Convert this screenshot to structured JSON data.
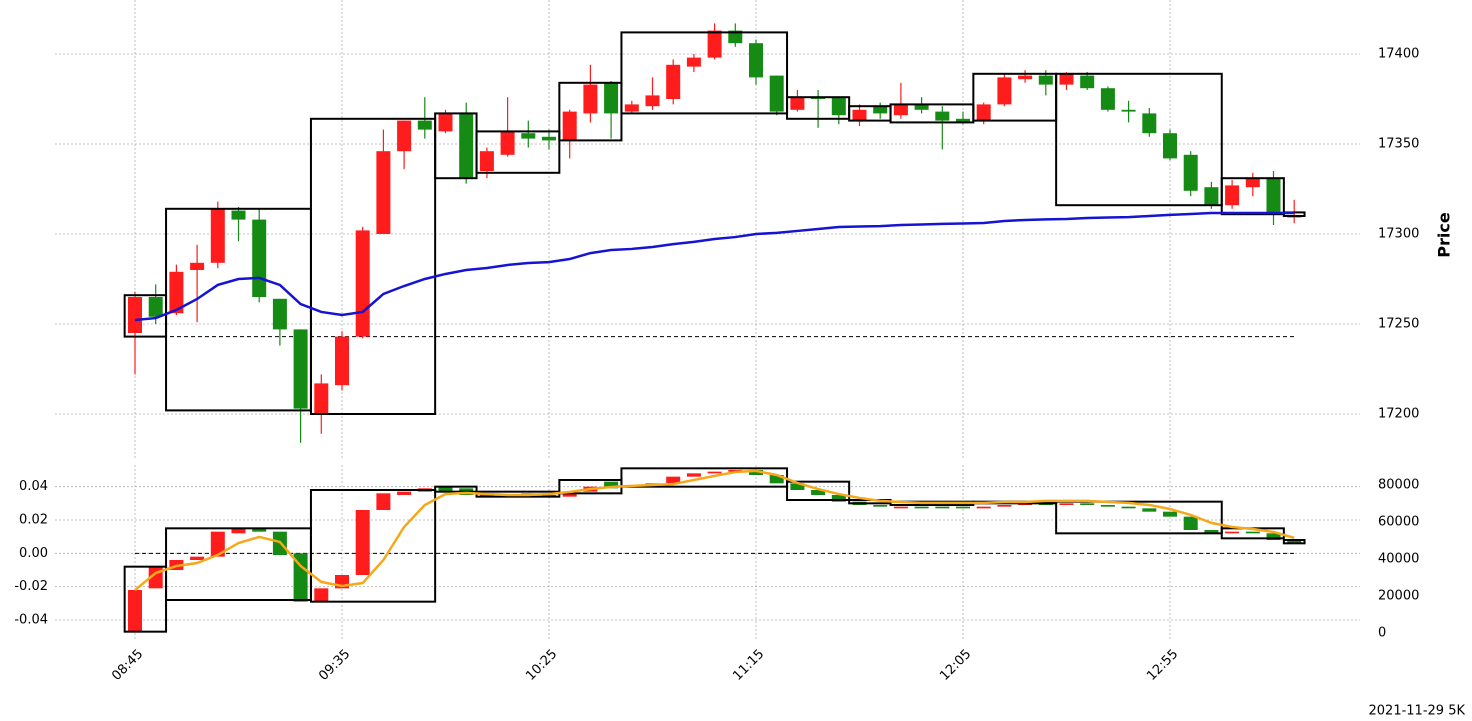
{
  "footer": "2021-11-29 5K",
  "chart_data": [
    {
      "type": "candlestick",
      "ylabel": "Price",
      "yaxis_side": "right",
      "grid": true,
      "up_color": "#fe1c1c",
      "down_color": "#158a15",
      "box_color": "#000000",
      "ylim": [
        17175,
        17430
      ],
      "yticks": [
        17200,
        17250,
        17300,
        17350,
        17400
      ],
      "open": [
        17245,
        17265,
        17256,
        17280,
        17284,
        17313,
        17308,
        17264,
        17247,
        17200,
        17216,
        17243,
        17300,
        17346,
        17363,
        17357,
        17367,
        17335,
        17344,
        17356,
        17354,
        17352,
        17367,
        17384,
        17368,
        17371,
        17375,
        17393,
        17398,
        17413,
        17406,
        17388,
        17369,
        17376,
        17376,
        17363,
        17371,
        17366,
        17372,
        17368,
        17364,
        17363,
        17372,
        17386,
        17388,
        17383,
        17388,
        17381,
        17369,
        17367,
        17356,
        17344,
        17326,
        17316,
        17326,
        17331,
        17310
      ],
      "high": [
        17268,
        17272,
        17283,
        17294,
        17318,
        17315,
        17314,
        17264,
        17247,
        17222,
        17246,
        17304,
        17358,
        17363,
        17376,
        17369,
        17373,
        17348,
        17376,
        17363,
        17358,
        17369,
        17394,
        17385,
        17374,
        17387,
        17397,
        17400,
        17417,
        17417,
        17408,
        17388,
        17380,
        17380,
        17376,
        17372,
        17373,
        17384,
        17376,
        17371,
        17368,
        17373,
        17389,
        17391,
        17391,
        17390,
        17390,
        17382,
        17374,
        17370,
        17358,
        17346,
        17329,
        17330,
        17334,
        17335,
        17319
      ],
      "low": [
        17222,
        17250,
        17255,
        17251,
        17281,
        17296,
        17262,
        17238,
        17184,
        17189,
        17213,
        17242,
        17300,
        17336,
        17353,
        17356,
        17328,
        17331,
        17343,
        17348,
        17347,
        17342,
        17362,
        17353,
        17367,
        17369,
        17372,
        17390,
        17397,
        17404,
        17383,
        17366,
        17368,
        17359,
        17361,
        17360,
        17364,
        17364,
        17367,
        17347,
        17361,
        17361,
        17371,
        17384,
        17377,
        17380,
        17380,
        17368,
        17362,
        17354,
        17341,
        17321,
        17314,
        17314,
        17321,
        17305,
        17306
      ],
      "close": [
        17265,
        17254,
        17279,
        17284,
        17314,
        17308,
        17265,
        17247,
        17203,
        17217,
        17243,
        17302,
        17346,
        17363,
        17358,
        17367,
        17331,
        17346,
        17357,
        17353,
        17352,
        17368,
        17383,
        17367,
        17372,
        17377,
        17394,
        17398,
        17413,
        17406,
        17387,
        17368,
        17376,
        17375,
        17366,
        17369,
        17367,
        17372,
        17369,
        17363,
        17362,
        17372,
        17387,
        17388,
        17383,
        17389,
        17381,
        17369,
        17368,
        17356,
        17342,
        17324,
        17316,
        17327,
        17331,
        17312,
        17310
      ],
      "hline": 17243,
      "boxes": [
        {
          "start": 0,
          "end": 1,
          "low": 17243,
          "high": 17266
        },
        {
          "start": 2,
          "end": 8,
          "low": 17202,
          "high": 17314
        },
        {
          "start": 9,
          "end": 14,
          "low": 17200,
          "high": 17364
        },
        {
          "start": 15,
          "end": 16,
          "low": 17331,
          "high": 17367
        },
        {
          "start": 17,
          "end": 20,
          "low": 17334,
          "high": 17357
        },
        {
          "start": 21,
          "end": 23,
          "low": 17352,
          "high": 17384
        },
        {
          "start": 24,
          "end": 31,
          "low": 17367,
          "high": 17412
        },
        {
          "start": 32,
          "end": 34,
          "low": 17364,
          "high": 17376
        },
        {
          "start": 35,
          "end": 36,
          "low": 17363,
          "high": 17371
        },
        {
          "start": 37,
          "end": 40,
          "low": 17362,
          "high": 17372
        },
        {
          "start": 41,
          "end": 44,
          "low": 17363,
          "high": 17389
        },
        {
          "start": 45,
          "end": 52,
          "low": 17316,
          "high": 17389
        },
        {
          "start": 53,
          "end": 55,
          "low": 17311,
          "high": 17331
        },
        {
          "start": 56,
          "end": 56,
          "low": 17310,
          "high": 17312
        }
      ],
      "lines": [
        {
          "color": "#1414d2",
          "values": [
            17252.2,
            17253.3,
            17257.8,
            17263.9,
            17271.7,
            17275.0,
            17275.6,
            17271.7,
            17261.1,
            17256.7,
            17255.0,
            17256.7,
            17266.7,
            17271.1,
            17275.0,
            17277.8,
            17280.0,
            17281.1,
            17282.8,
            17283.9,
            17284.4,
            17286.1,
            17289.4,
            17291.1,
            17291.7,
            17292.8,
            17294.4,
            17295.6,
            17297.2,
            17298.3,
            17300.0,
            17300.6,
            17301.7,
            17302.8,
            17303.9,
            17304.2,
            17304.4,
            17305.0,
            17305.3,
            17305.6,
            17305.8,
            17306.1,
            17307.2,
            17307.8,
            17308.1,
            17308.3,
            17308.9,
            17309.2,
            17309.4,
            17310.0,
            17310.6,
            17311.1,
            17311.7,
            17311.7,
            17311.7,
            17311.7,
            17311.7
          ]
        }
      ]
    },
    {
      "type": "candlestick",
      "yaxis_side": "left",
      "grid": true,
      "up_color": "#fe1c1c",
      "down_color": "#158a15",
      "box_color": "#000000",
      "categories": [
        "08:45",
        null,
        null,
        null,
        null,
        null,
        null,
        null,
        null,
        null,
        "09:35",
        null,
        null,
        null,
        null,
        null,
        null,
        null,
        null,
        null,
        "10:25",
        null,
        null,
        null,
        null,
        null,
        null,
        null,
        null,
        null,
        "11:15",
        null,
        null,
        null,
        null,
        null,
        null,
        null,
        null,
        null,
        "12:05",
        null,
        null,
        null,
        null,
        null,
        null,
        null,
        null,
        null,
        "12:55",
        null,
        null,
        null,
        null,
        null,
        null
      ],
      "ylim": [
        -0.052,
        0.053
      ],
      "yticks": [
        -0.04,
        -0.02,
        {
          "value": 0,
          "label": "0.00"
        },
        0.02,
        0.04
      ],
      "y2lim": [
        -3800,
        90800
      ],
      "y2ticks": [
        0,
        20000,
        40000,
        60000,
        80000
      ],
      "open": [
        -0.047,
        -0.021,
        -0.01,
        -0.004,
        -0.002,
        0.012,
        0.015,
        0.013,
        0.0,
        -0.029,
        -0.021,
        -0.013,
        0.026,
        0.035,
        0.037,
        0.04,
        0.039,
        0.036,
        0.034,
        0.036,
        0.035,
        0.034,
        0.037,
        0.043,
        0.04,
        0.041,
        0.042,
        0.046,
        0.048,
        0.049,
        0.05,
        0.047,
        0.042,
        0.038,
        0.035,
        0.031,
        0.029,
        0.027,
        0.028,
        0.028,
        0.028,
        0.027,
        0.028,
        0.029,
        0.03,
        0.029,
        0.03,
        0.029,
        0.028,
        0.027,
        0.025,
        0.022,
        0.014,
        0.012,
        0.013,
        0.012,
        0.008
      ],
      "close": [
        -0.022,
        -0.008,
        -0.004,
        -0.002,
        0.013,
        0.015,
        0.013,
        -0.001,
        -0.029,
        -0.021,
        -0.013,
        0.026,
        0.036,
        0.037,
        0.039,
        0.037,
        0.035,
        0.034,
        0.035,
        0.035,
        0.034,
        0.037,
        0.04,
        0.039,
        0.041,
        0.042,
        0.046,
        0.048,
        0.049,
        0.05,
        0.047,
        0.042,
        0.038,
        0.035,
        0.031,
        0.029,
        0.028,
        0.028,
        0.027,
        0.027,
        0.027,
        0.028,
        0.029,
        0.03,
        0.029,
        0.03,
        0.029,
        0.028,
        0.027,
        0.025,
        0.022,
        0.014,
        0.012,
        0.013,
        0.012,
        0.008,
        0.006
      ],
      "hline": 0,
      "boxes": [
        {
          "start": 0,
          "end": 1,
          "low": -0.047,
          "high": -0.008
        },
        {
          "start": 2,
          "end": 8,
          "low": -0.028,
          "high": 0.015
        },
        {
          "start": 9,
          "end": 14,
          "low": -0.029,
          "high": 0.038
        },
        {
          "start": 15,
          "end": 16,
          "low": 0.037,
          "high": 0.04
        },
        {
          "start": 17,
          "end": 20,
          "low": 0.034,
          "high": 0.037
        },
        {
          "start": 21,
          "end": 23,
          "low": 0.036,
          "high": 0.044
        },
        {
          "start": 24,
          "end": 31,
          "low": 0.04,
          "high": 0.051
        },
        {
          "start": 32,
          "end": 34,
          "low": 0.032,
          "high": 0.043
        },
        {
          "start": 35,
          "end": 36,
          "low": 0.03,
          "high": 0.032
        },
        {
          "start": 37,
          "end": 40,
          "low": 0.029,
          "high": 0.031
        },
        {
          "start": 41,
          "end": 44,
          "low": 0.03,
          "high": 0.031
        },
        {
          "start": 45,
          "end": 52,
          "low": 0.012,
          "high": 0.031
        },
        {
          "start": 53,
          "end": 55,
          "low": 0.009,
          "high": 0.015
        },
        {
          "start": 56,
          "end": 56,
          "low": 0.006,
          "high": 0.008
        }
      ],
      "lines": [
        {
          "color": "#f5a81a",
          "axis": "y2",
          "values": [
            23200,
            32400,
            36200,
            37800,
            42200,
            48600,
            51900,
            49200,
            36200,
            27600,
            25400,
            27000,
            39500,
            57300,
            69200,
            75100,
            75700,
            75100,
            74600,
            74600,
            75100,
            76200,
            77800,
            78900,
            79500,
            80000,
            80500,
            82700,
            84900,
            87000,
            87600,
            85400,
            81100,
            77800,
            75100,
            73000,
            71400,
            70800,
            70300,
            70300,
            70300,
            70300,
            70800,
            70800,
            71400,
            71400,
            71400,
            70800,
            70300,
            69200,
            67000,
            63800,
            59500,
            57300,
            56200,
            54600,
            51400
          ]
        }
      ]
    }
  ]
}
